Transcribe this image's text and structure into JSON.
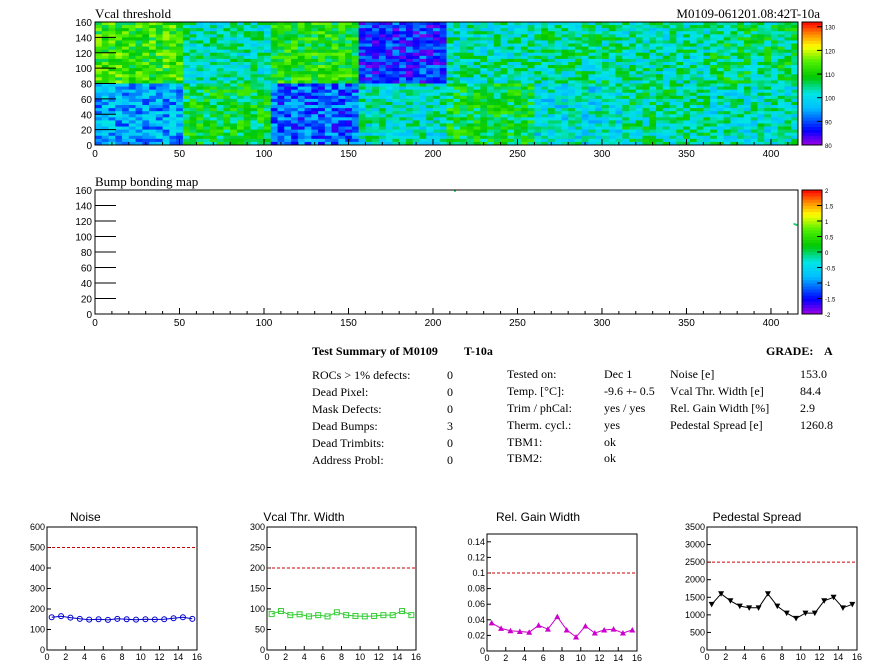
{
  "vcal": {
    "title": "Vcal threshold",
    "run_label": "M0109-061201.08:42T-10a",
    "xlim": [
      0,
      416
    ],
    "ylim": [
      0,
      160
    ],
    "x_ticks": [
      "0",
      "50",
      "100",
      "150",
      "200",
      "250",
      "300",
      "350",
      "400"
    ],
    "y_ticks": [
      "0",
      "20",
      "40",
      "60",
      "80",
      "100",
      "120",
      "140",
      "160"
    ],
    "z_range": [
      80,
      132
    ],
    "z_ticks": [
      "80",
      "90",
      "100",
      "110",
      "120",
      "130"
    ],
    "roc_means": [
      [
        112,
        103,
        110,
        88,
        103,
        104,
        103,
        106
      ],
      [
        95,
        108,
        91,
        102,
        108,
        101,
        104,
        102
      ]
    ]
  },
  "bump": {
    "title": "Bump bonding map",
    "xlim": [
      0,
      416
    ],
    "ylim": [
      0,
      160
    ],
    "x_ticks": [
      "0",
      "50",
      "100",
      "150",
      "200",
      "250",
      "300",
      "350",
      "400"
    ],
    "y_ticks": [
      "0",
      "20",
      "40",
      "60",
      "80",
      "100",
      "120",
      "140",
      "160"
    ],
    "z_range": [
      -2,
      2
    ],
    "z_ticks": [
      "-2",
      "-1.5",
      "-1",
      "-0.5",
      "0",
      "0.5",
      "1",
      "1.5",
      "2"
    ],
    "dead_bumps": [
      [
        213,
        159
      ],
      [
        414,
        116
      ],
      [
        415,
        115
      ]
    ]
  },
  "summary": {
    "title": "Test Summary of M0109",
    "temp_code": "T-10a",
    "grade_label": "GRADE:",
    "grade": "A",
    "defects": [
      {
        "label": "ROCs > 1% defects:",
        "value": "0"
      },
      {
        "label": "Dead Pixel:",
        "value": "0"
      },
      {
        "label": "Mask Defects:",
        "value": "0"
      },
      {
        "label": "Dead Bumps:",
        "value": "3"
      },
      {
        "label": "Dead Trimbits:",
        "value": "0"
      },
      {
        "label": "Address Probl:",
        "value": "0"
      }
    ],
    "conditions": [
      {
        "label": "Tested on:",
        "value": "Dec 1"
      },
      {
        "label": "Temp. [°C]:",
        "value": "-9.6 +- 0.5"
      },
      {
        "label": "Trim / phCal:",
        "value": "yes / yes"
      },
      {
        "label": "Therm. cycl.:",
        "value": "yes"
      },
      {
        "label": "TBM1:",
        "value": "ok"
      },
      {
        "label": "TBM2:",
        "value": "ok"
      }
    ],
    "performance": [
      {
        "label": "Noise [e]",
        "value": "153.0"
      },
      {
        "label": "Vcal Thr. Width [e]",
        "value": "84.4"
      },
      {
        "label": "Rel. Gain Width [%]",
        "value": "2.9"
      },
      {
        "label": "Pedestal Spread [e]",
        "value": "1260.8"
      }
    ]
  },
  "chart_data": [
    {
      "type": "heatmap",
      "title": "Vcal threshold",
      "x_range": [
        0,
        416
      ],
      "y_range": [
        0,
        160
      ],
      "z_range": [
        80,
        132
      ],
      "roc_mean_threshold": [
        [
          112,
          103,
          110,
          88,
          103,
          104,
          103,
          106
        ],
        [
          95,
          108,
          91,
          102,
          108,
          101,
          104,
          102
        ]
      ]
    },
    {
      "type": "heatmap",
      "title": "Bump bonding map",
      "x_range": [
        0,
        416
      ],
      "y_range": [
        0,
        160
      ],
      "z_range": [
        -2,
        2
      ],
      "dead_bumps": [
        [
          213,
          159
        ],
        [
          414,
          116
        ],
        [
          415,
          115
        ]
      ]
    },
    {
      "type": "line",
      "title": "Noise",
      "xlim": [
        0,
        16
      ],
      "ylim": [
        0,
        600
      ],
      "x_ticks": [
        "0",
        "2",
        "4",
        "6",
        "8",
        "10",
        "12",
        "14",
        "16"
      ],
      "y_ticks": [
        "0",
        "100",
        "200",
        "300",
        "400",
        "500",
        "600"
      ],
      "cut": 500,
      "color": "#0000cc",
      "marker": "circle",
      "x": [
        0.5,
        1.5,
        2.5,
        3.5,
        4.5,
        5.5,
        6.5,
        7.5,
        8.5,
        9.5,
        10.5,
        11.5,
        12.5,
        13.5,
        14.5,
        15.5
      ],
      "values": [
        160,
        165,
        158,
        152,
        148,
        150,
        147,
        152,
        150,
        148,
        150,
        149,
        150,
        155,
        160,
        152
      ]
    },
    {
      "type": "line",
      "title": "Vcal Thr. Width",
      "xlim": [
        0,
        16
      ],
      "ylim": [
        0,
        300
      ],
      "x_ticks": [
        "0",
        "2",
        "4",
        "6",
        "8",
        "10",
        "12",
        "14",
        "16"
      ],
      "y_ticks": [
        "0",
        "50",
        "100",
        "150",
        "200",
        "250",
        "300"
      ],
      "cut": 200,
      "color": "#33cc33",
      "marker": "square",
      "x": [
        0.5,
        1.5,
        2.5,
        3.5,
        4.5,
        5.5,
        6.5,
        7.5,
        8.5,
        9.5,
        10.5,
        11.5,
        12.5,
        13.5,
        14.5,
        15.5
      ],
      "values": [
        88,
        95,
        85,
        87,
        82,
        85,
        82,
        92,
        85,
        83,
        82,
        83,
        85,
        85,
        95,
        85
      ]
    },
    {
      "type": "line",
      "title": "Rel. Gain Width",
      "xlim": [
        0,
        16
      ],
      "ylim": [
        0,
        0.15
      ],
      "x_ticks": [
        "0",
        "2",
        "4",
        "6",
        "8",
        "10",
        "12",
        "14",
        "16"
      ],
      "y_ticks": [
        "0",
        "0.02",
        "0.04",
        "0.06",
        "0.08",
        "0.1",
        "0.12",
        "0.14"
      ],
      "cut": 0.1,
      "color": "#cc00cc",
      "marker": "triangle",
      "x": [
        0.5,
        1.5,
        2.5,
        3.5,
        4.5,
        5.5,
        6.5,
        7.5,
        8.5,
        9.5,
        10.5,
        11.5,
        12.5,
        13.5,
        14.5,
        15.5
      ],
      "values": [
        0.036,
        0.029,
        0.026,
        0.025,
        0.024,
        0.033,
        0.028,
        0.044,
        0.027,
        0.018,
        0.032,
        0.023,
        0.027,
        0.028,
        0.023,
        0.027
      ]
    },
    {
      "type": "line",
      "title": "Pedestal Spread",
      "xlim": [
        0,
        16
      ],
      "ylim": [
        0,
        3500
      ],
      "x_ticks": [
        "0",
        "2",
        "4",
        "6",
        "8",
        "10",
        "12",
        "14",
        "16"
      ],
      "y_ticks": [
        "0",
        "500",
        "1000",
        "1500",
        "2000",
        "2500",
        "3000",
        "3500"
      ],
      "cut": 2500,
      "color": "#000000",
      "marker": "down-triangle",
      "x": [
        0.5,
        1.5,
        2.5,
        3.5,
        4.5,
        5.5,
        6.5,
        7.5,
        8.5,
        9.5,
        10.5,
        11.5,
        12.5,
        13.5,
        14.5,
        15.5
      ],
      "values": [
        1300,
        1600,
        1400,
        1250,
        1200,
        1200,
        1600,
        1250,
        1050,
        900,
        1050,
        1050,
        1400,
        1500,
        1200,
        1300
      ]
    }
  ]
}
